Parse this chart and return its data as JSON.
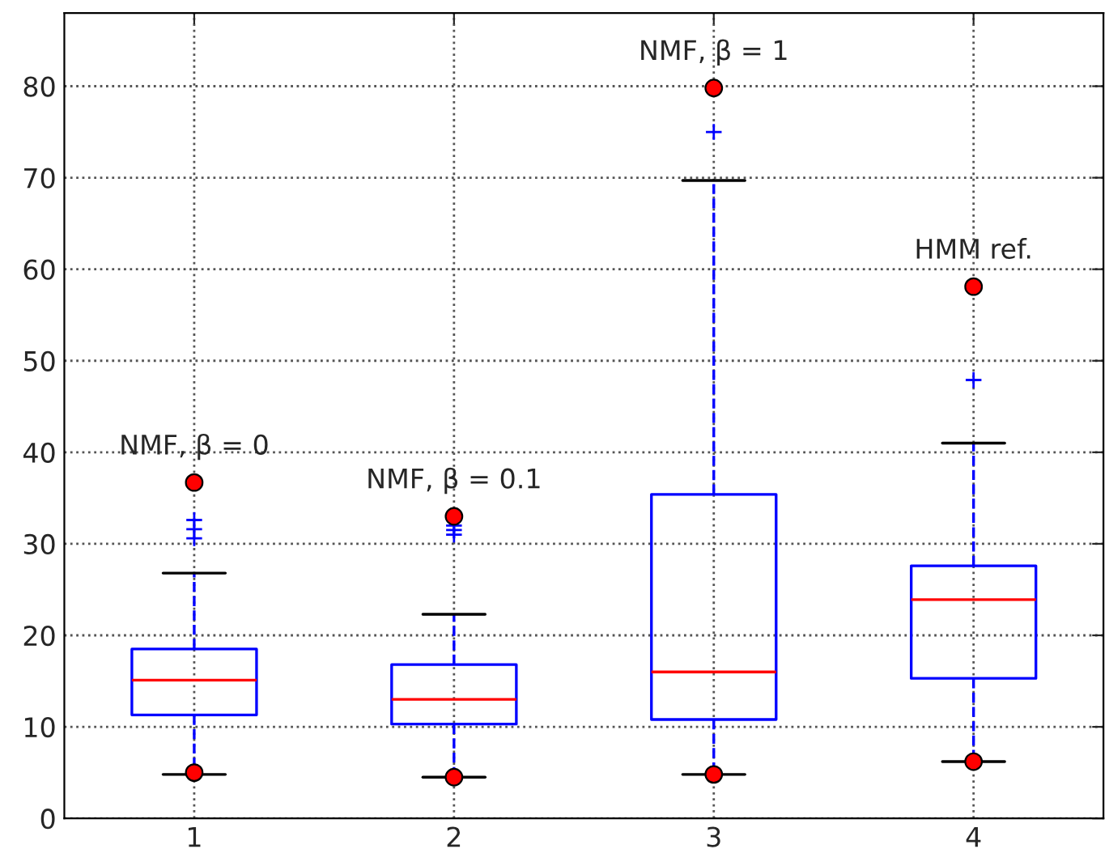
{
  "chart_data": {
    "type": "box",
    "categories": [
      "1",
      "2",
      "3",
      "4"
    ],
    "ylim": [
      0,
      88
    ],
    "yticks": [
      0,
      10,
      20,
      30,
      40,
      50,
      60,
      70,
      80
    ],
    "grid": true,
    "series": [
      {
        "color": "#0000ff",
        "boxes": [
          {
            "low": 4.8,
            "q1": 11.3,
            "median": 15.1,
            "q3": 18.5,
            "high": 26.8,
            "outliers": [
              30.6,
              31.6,
              32.6
            ]
          },
          {
            "low": 4.5,
            "q1": 10.3,
            "median": 13.0,
            "q3": 16.8,
            "high": 22.3,
            "outliers": [
              31.0,
              31.5,
              32.0
            ]
          },
          {
            "low": 4.8,
            "q1": 10.8,
            "median": 16.0,
            "q3": 35.4,
            "high": 69.7,
            "outliers": [
              75.0
            ]
          },
          {
            "low": 6.2,
            "q1": 15.3,
            "median": 23.9,
            "q3": 27.6,
            "high": 41.0,
            "outliers": [
              47.9
            ]
          }
        ]
      },
      {
        "type": "scatter",
        "color": "#ff0000",
        "marker": "circle",
        "x": [
          "1",
          "1",
          "2",
          "2",
          "3",
          "3",
          "4",
          "4"
        ],
        "values": [
          36.7,
          5.0,
          33.0,
          4.5,
          79.8,
          4.8,
          58.1,
          6.2
        ]
      }
    ],
    "annotations": [
      {
        "text": "NMF, β = 0",
        "x": "1",
        "y": 36.7
      },
      {
        "text": "NMF, β = 0.1",
        "x": "2",
        "y": 33.0
      },
      {
        "text": "NMF, β = 1",
        "x": "3",
        "y": 79.8
      },
      {
        "text": "HMM ref.",
        "x": "4",
        "y": 58.1
      }
    ]
  }
}
